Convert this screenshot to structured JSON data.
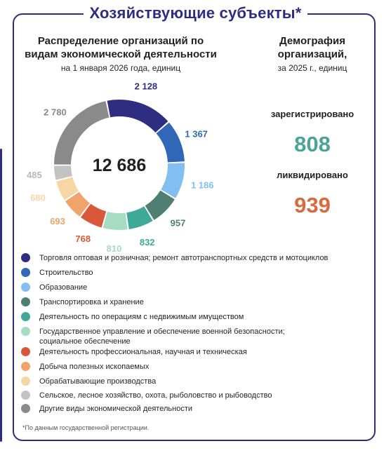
{
  "title": "Хозяйствующие субъекты*",
  "left_panel": {
    "title_line1": "Распределение организаций по",
    "title_line2": "видам экономической деятельности",
    "subtitle": "на 1 января 2026 года, единиц",
    "total": "12 686"
  },
  "right_panel": {
    "title_line1": "Демография",
    "title_line2": "организаций,",
    "subtitle": "за 2025 г., единиц",
    "registered_label": "зарегистрировано",
    "registered_value": "808",
    "liquidated_label": "ликвидировано",
    "liquidated_value": "939"
  },
  "chart_data": {
    "type": "pie",
    "donut": true,
    "center_label": "12 686",
    "series": [
      {
        "name": "Торговля оптовая и розничная; ремонт автотранспортных средств и мотоциклов",
        "value": 2128,
        "label": "2 128",
        "color": "#2e2d82"
      },
      {
        "name": "Строительство",
        "value": 1367,
        "label": "1 367",
        "color": "#3068b7"
      },
      {
        "name": "Образование",
        "value": 1186,
        "label": "1 186",
        "color": "#82bff0"
      },
      {
        "name": "Транспортировка и хранение",
        "value": 957,
        "label": "957",
        "color": "#4e7f70"
      },
      {
        "name": "Деятельность по операциям с недвижимым имуществом",
        "value": 832,
        "label": "832",
        "color": "#3fa899"
      },
      {
        "name": "Государственное управление и обеспечение военной безопасности; социальное обеспечение",
        "value": 810,
        "label": "810",
        "color": "#a6dcc3"
      },
      {
        "name": "Деятельность профессиональная, научная и техническая",
        "value": 768,
        "label": "768",
        "color": "#d9583a"
      },
      {
        "name": "Добыча полезных ископаемых",
        "value": 693,
        "label": "693",
        "color": "#f0a36b"
      },
      {
        "name": "Обрабатывающие производства",
        "value": 680,
        "label": "680",
        "color": "#f7d6a6"
      },
      {
        "name": "Сельское, лесное хозяйство, охота, рыболовство и рыбоводство",
        "value": 485,
        "label": "485",
        "color": "#c3c3c3"
      },
      {
        "name": "Другие виды экономической деятельности",
        "value": 2780,
        "label": "2 780",
        "color": "#8a8a8a"
      }
    ]
  },
  "legend_lines": [
    [
      "Торговля оптовая и розничная; ремонт автотранспортных средств и мотоциклов"
    ],
    [
      "Строительство"
    ],
    [
      "Образование"
    ],
    [
      "Транспортировка и хранение"
    ],
    [
      "Деятельность по операциям с недвижимым имуществом"
    ],
    [
      "Государственное управление и обеспечение военной безопасности;",
      "социальное обеспечение"
    ],
    [
      "Деятельность профессиональная, научная и техническая"
    ],
    [
      "Добыча полезных ископаемых"
    ],
    [
      "Обрабатывающие производства"
    ],
    [
      "Сельское, лесное хозяйство, охота, рыболовство и рыбоводство"
    ],
    [
      "Другие виды экономической деятельности"
    ]
  ],
  "footnote": "*По данным государственной регистрации."
}
